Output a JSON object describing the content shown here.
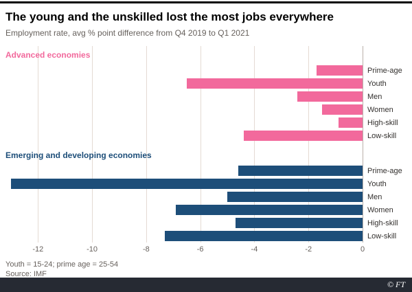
{
  "chart_data": {
    "type": "bar",
    "orientation": "horizontal",
    "title": "The young and the unskilled lost the most jobs everywhere",
    "subtitle": "Employment rate, avg % point difference from Q4 2019 to Q1 2021",
    "categories": [
      "Prime-age",
      "Youth",
      "Men",
      "Women",
      "High-skill",
      "Low-skill"
    ],
    "series": [
      {
        "name": "Advanced economies",
        "color": "#f2699c",
        "values": [
          -1.7,
          -6.5,
          -2.4,
          -1.5,
          -0.9,
          -4.4
        ]
      },
      {
        "name": "Emerging and developing economies",
        "color": "#1d4e79",
        "values": [
          -4.6,
          -13.0,
          -5.0,
          -6.9,
          -4.7,
          -7.3
        ]
      }
    ],
    "xticks": [
      -12,
      -10,
      -8,
      -6,
      -4,
      -2,
      0
    ],
    "xlim": [
      -13.2,
      0
    ],
    "grid": "vertical",
    "legend_position": "group-headers"
  },
  "footer": {
    "note": "Youth = 15-24; prime age = 25-54",
    "source": "Source: IMF",
    "credit": "© FT"
  },
  "colors": {
    "advanced_pink": "#f2699c",
    "emerging_blue": "#1d4e79",
    "gridline": "#e4dad3",
    "zero_line": "#b9b0aa",
    "muted_text": "#66605c",
    "footer_bar": "#262a33"
  }
}
